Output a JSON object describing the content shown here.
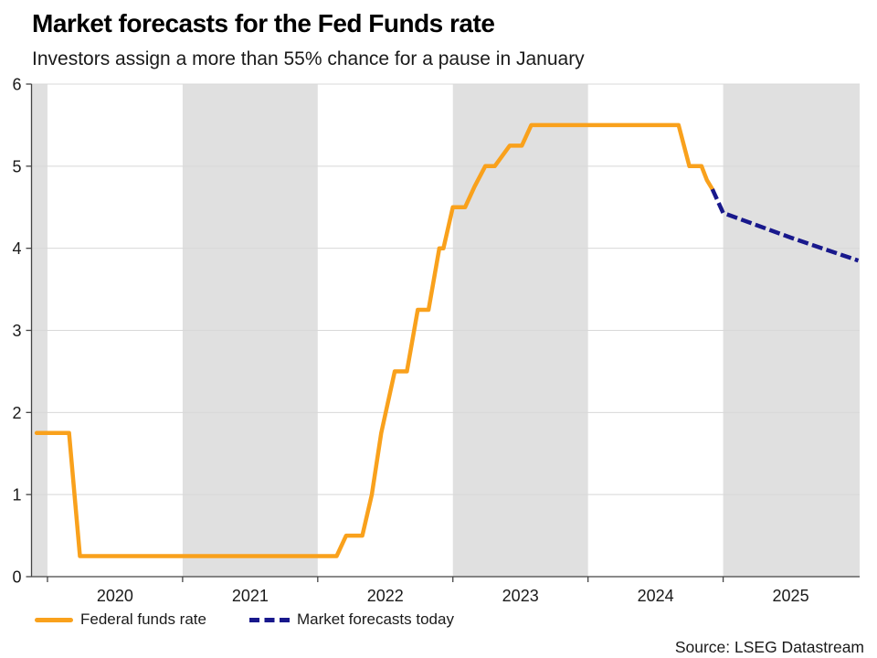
{
  "source": "Source: LSEG Datastream",
  "chart_data": {
    "type": "line",
    "title": "Market forecasts for the Fed Funds rate",
    "subtitle": "Investors assign a more than 55% chance for a pause in January",
    "xlabel": "",
    "ylabel": "",
    "x_range": [
      2019.882,
      2026.01
    ],
    "y_range": [
      0,
      6
    ],
    "y_ticks": [
      0,
      1,
      2,
      3,
      4,
      5,
      6
    ],
    "x_ticks": [
      2020,
      2021,
      2022,
      2023,
      2024,
      2025
    ],
    "x_tick_labels": [
      {
        "label": "2020",
        "x": 2020.5
      },
      {
        "label": "2021",
        "x": 2021.5
      },
      {
        "label": "2022",
        "x": 2022.5
      },
      {
        "label": "2023",
        "x": 2023.5
      },
      {
        "label": "2024",
        "x": 2024.5
      },
      {
        "label": "2025",
        "x": 2025.5
      }
    ],
    "shaded_year_bands": [
      [
        2019.882,
        2020.0
      ],
      [
        2021.0,
        2022.0
      ],
      [
        2023.0,
        2024.0
      ],
      [
        2025.0,
        2026.01
      ]
    ],
    "grid": "horizontal",
    "legend_position": "bottom-left",
    "colors": {
      "band": "#E0E0E0",
      "grid": "#D8D8D8",
      "axis": "#444444",
      "text": "#1A1A1A"
    },
    "series": [
      {
        "name": "Federal funds rate",
        "color": "#F9A11C",
        "dash": false,
        "points": [
          [
            2019.92,
            1.75
          ],
          [
            2020.16,
            1.75
          ],
          [
            2020.24,
            0.25
          ],
          [
            2022.14,
            0.25
          ],
          [
            2022.21,
            0.5
          ],
          [
            2022.33,
            0.5
          ],
          [
            2022.4,
            1.0
          ],
          [
            2022.47,
            1.75
          ],
          [
            2022.57,
            2.5
          ],
          [
            2022.66,
            2.5
          ],
          [
            2022.74,
            3.25
          ],
          [
            2022.82,
            3.25
          ],
          [
            2022.9,
            4.0
          ],
          [
            2022.93,
            4.0
          ],
          [
            2023.0,
            4.5
          ],
          [
            2023.09,
            4.5
          ],
          [
            2023.16,
            4.75
          ],
          [
            2023.24,
            5.0
          ],
          [
            2023.31,
            5.0
          ],
          [
            2023.42,
            5.25
          ],
          [
            2023.51,
            5.25
          ],
          [
            2023.58,
            5.5
          ],
          [
            2024.67,
            5.5
          ],
          [
            2024.75,
            5.0
          ],
          [
            2024.84,
            5.0
          ],
          [
            2024.88,
            4.83
          ],
          [
            2024.92,
            4.72
          ]
        ]
      },
      {
        "name": "Market forecasts today",
        "color": "#18188C",
        "dash": true,
        "points": [
          [
            2024.92,
            4.72
          ],
          [
            2025.0,
            4.43
          ],
          [
            2025.25,
            4.28
          ],
          [
            2025.5,
            4.13
          ],
          [
            2025.75,
            3.99
          ],
          [
            2026.0,
            3.85
          ]
        ]
      }
    ]
  }
}
